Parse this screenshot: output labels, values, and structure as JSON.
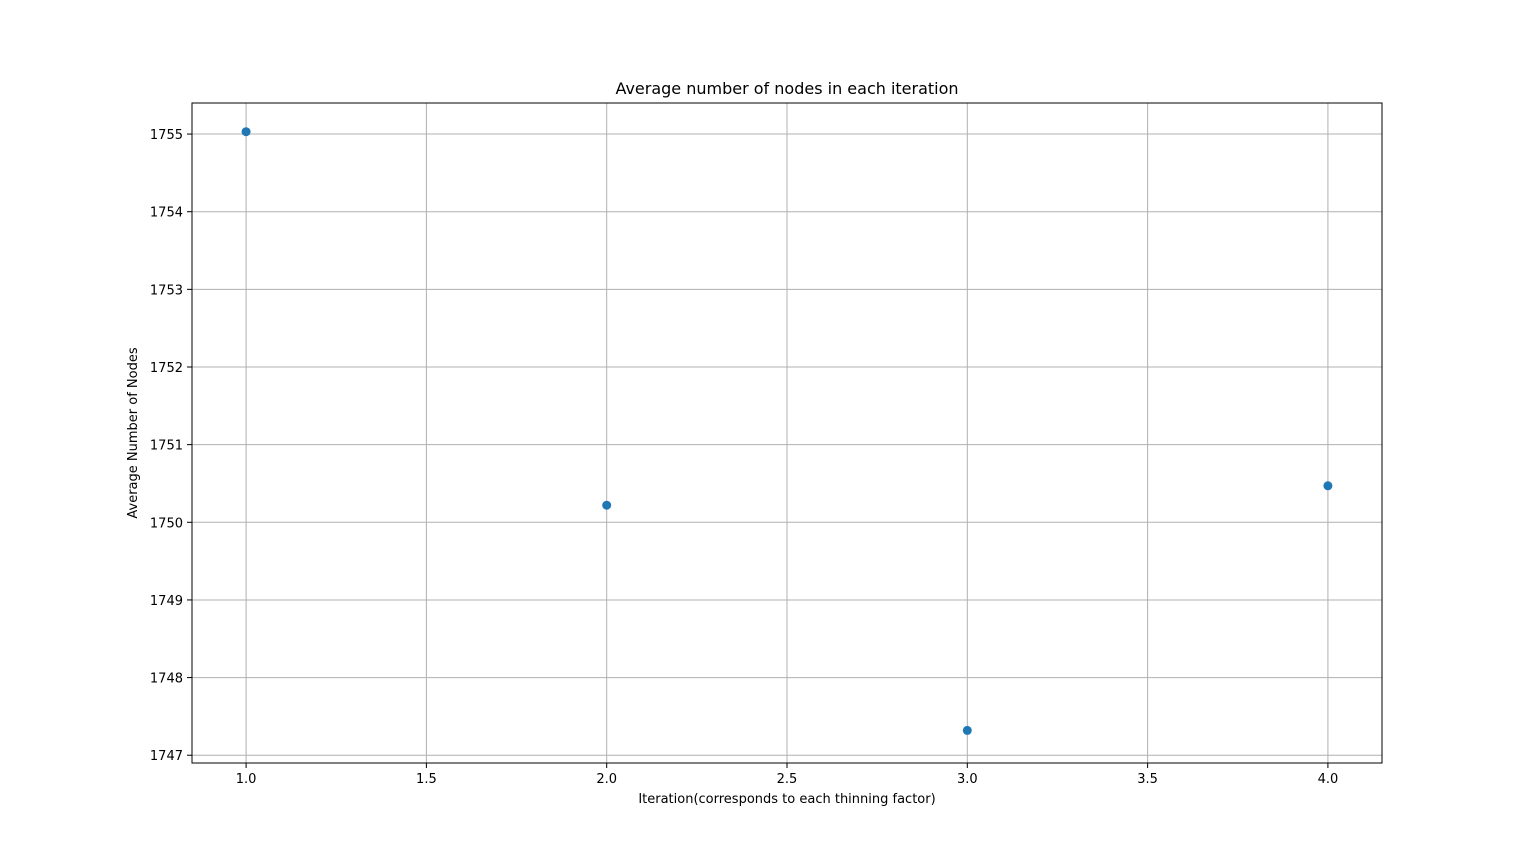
{
  "chart_data": {
    "type": "scatter",
    "title": "Average number of nodes in each iteration",
    "xlabel": "Iteration(corresponds to each thinning factor)",
    "ylabel": "Average Number of Nodes",
    "x": [
      1.0,
      2.0,
      3.0,
      4.0
    ],
    "y": [
      1755.03,
      1750.22,
      1747.32,
      1750.47
    ],
    "xlim": [
      0.85,
      4.15
    ],
    "ylim": [
      1746.9,
      1755.4
    ],
    "xticks": [
      1.0,
      1.5,
      2.0,
      2.5,
      3.0,
      3.5,
      4.0
    ],
    "xtick_labels": [
      "1.0",
      "1.5",
      "2.0",
      "2.5",
      "3.0",
      "3.5",
      "4.0"
    ],
    "yticks": [
      1747,
      1748,
      1749,
      1750,
      1751,
      1752,
      1753,
      1754,
      1755
    ],
    "ytick_labels": [
      "1747",
      "1748",
      "1749",
      "1750",
      "1751",
      "1752",
      "1753",
      "1754",
      "1755"
    ],
    "grid": true,
    "legend": "none",
    "marker_color": "#1f77b4",
    "grid_color": "#b0b0b0"
  }
}
